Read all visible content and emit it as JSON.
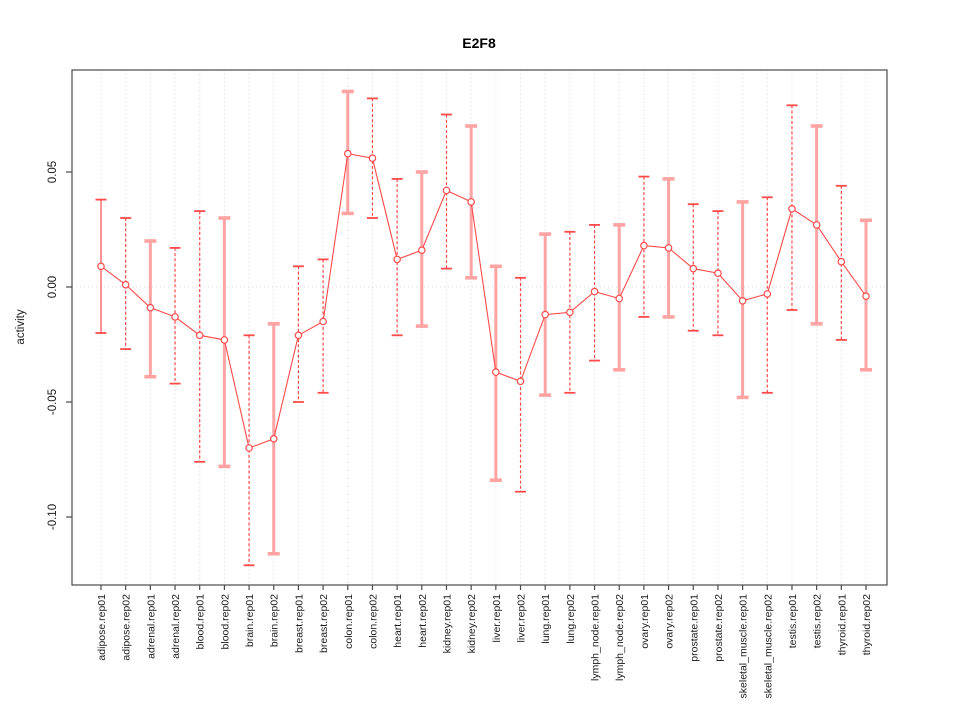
{
  "figure": {
    "title": "E2F8",
    "ylabel": "activity"
  },
  "chart_data": {
    "type": "line",
    "title": "E2F8",
    "xlabel": "",
    "ylabel": "activity",
    "ylim": [
      -0.13,
      0.094
    ],
    "yticks": [
      0.05,
      0.0,
      -0.05,
      -0.1
    ],
    "ytick_labels": [
      "0.05",
      "0.00",
      "-0.05",
      "-0.10"
    ],
    "grid": "dotted vertical gridline per category plus dotted horizontal line at zero",
    "legend_position": "none",
    "marker": "open-circle",
    "colors": {
      "line": "#ff4a4a",
      "marker_fill": "#ffffff",
      "thick_error_bar": "#ffa3a3",
      "gridline": "#d8d8d8",
      "frame": "#4a4a4a"
    },
    "categories": [
      "adipose.rep01",
      "adipose.rep02",
      "adrenal.rep01",
      "adrenal.rep02",
      "blood.rep01",
      "blood.rep02",
      "brain.rep01",
      "brain.rep02",
      "breast.rep01",
      "breast.rep02",
      "colon.rep01",
      "colon.rep02",
      "heart.rep01",
      "heart.rep02",
      "kidney.rep01",
      "kidney.rep02",
      "liver.rep01",
      "liver.rep02",
      "lung.rep01",
      "lung.rep02",
      "lymph_node.rep01",
      "lymph_node.rep02",
      "ovary.rep01",
      "ovary.rep02",
      "prostate.rep01",
      "prostate.rep02",
      "skeletal_muscle.rep01",
      "skeletal_muscle.rep02",
      "testis.rep01",
      "testis.rep02",
      "thyroid.rep01",
      "thyroid.rep02"
    ],
    "series": [
      {
        "name": "activity",
        "values": [
          0.009,
          0.001,
          -0.009,
          -0.013,
          -0.021,
          -0.023,
          -0.07,
          -0.066,
          -0.021,
          -0.015,
          0.058,
          0.056,
          0.012,
          0.016,
          0.042,
          0.037,
          -0.037,
          -0.041,
          -0.012,
          -0.011,
          -0.002,
          -0.005,
          0.018,
          0.017,
          0.008,
          0.006,
          -0.006,
          -0.003,
          0.034,
          0.027,
          0.011,
          -0.004
        ]
      },
      {
        "name": "upper_error",
        "values": [
          0.038,
          0.03,
          0.02,
          0.017,
          0.033,
          0.03,
          -0.021,
          -0.016,
          0.009,
          0.012,
          0.085,
          0.082,
          0.047,
          0.05,
          0.075,
          0.07,
          0.009,
          0.004,
          0.023,
          0.024,
          0.027,
          0.027,
          0.048,
          0.047,
          0.036,
          0.033,
          0.037,
          0.039,
          0.079,
          0.07,
          0.044,
          0.029
        ]
      },
      {
        "name": "lower_error",
        "values": [
          -0.02,
          -0.027,
          -0.039,
          -0.042,
          -0.076,
          -0.078,
          -0.121,
          -0.116,
          -0.05,
          -0.046,
          0.032,
          0.03,
          -0.021,
          -0.017,
          0.008,
          0.004,
          -0.084,
          -0.089,
          -0.047,
          -0.046,
          -0.032,
          -0.036,
          -0.013,
          -0.013,
          -0.019,
          -0.021,
          -0.048,
          -0.046,
          -0.01,
          -0.016,
          -0.023,
          -0.036
        ]
      }
    ],
    "error_bar_styles": [
      "solid",
      "dashed",
      "thick",
      "dashed",
      "dashed",
      "thick",
      "dashed",
      "thick",
      "dashed",
      "dashed",
      "thick",
      "dashed",
      "dashed",
      "thick",
      "dashed",
      "thick",
      "thick",
      "dashed",
      "thick",
      "dashed",
      "dashed",
      "thick",
      "dashed",
      "thick",
      "dashed",
      "dashed",
      "thick",
      "dashed",
      "dashed",
      "thick",
      "dashed",
      "thick"
    ]
  }
}
